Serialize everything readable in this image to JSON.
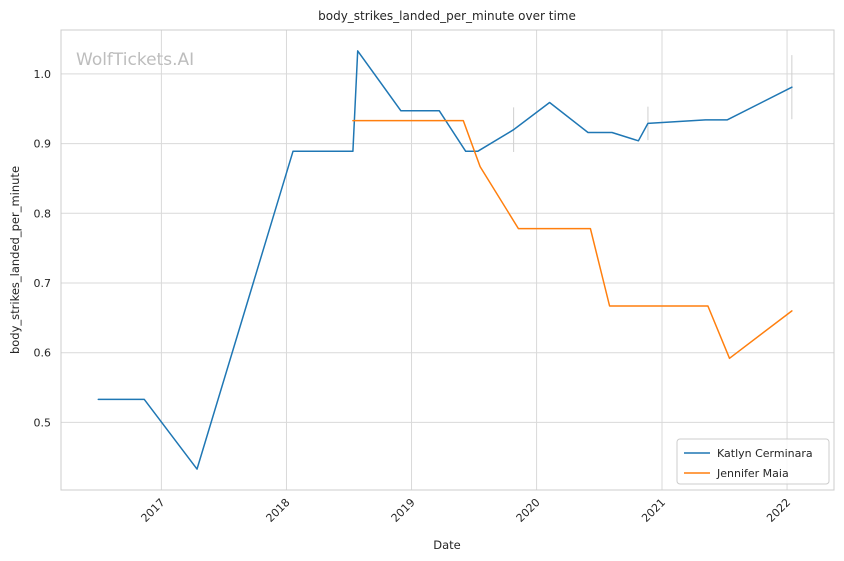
{
  "watermark": "WolfTickets.AI",
  "chart_data": {
    "type": "line",
    "title": "body_strikes_landed_per_minute over time",
    "xlabel": "Date",
    "ylabel": "body_strikes_landed_per_minute",
    "x_ticks": [
      "2017",
      "2018",
      "2019",
      "2020",
      "2021",
      "2022"
    ],
    "y_ticks": [
      "0.5",
      "0.6",
      "0.7",
      "0.8",
      "0.9",
      "1.0"
    ],
    "xlim": [
      "2016-03-14",
      "2022-05-18"
    ],
    "ylim": [
      0.403,
      1.063
    ],
    "grid": true,
    "legend_position": "bottom-right",
    "series": [
      {
        "name": "Katlyn Cerminara",
        "color": "#1f77b4",
        "points": [
          [
            "2016-07-01",
            0.533
          ],
          [
            "2016-11-12",
            0.533
          ],
          [
            "2017-04-15",
            0.433
          ],
          [
            "2018-01-20",
            0.889
          ],
          [
            "2018-07-14",
            0.889
          ],
          [
            "2018-07-28",
            1.033
          ],
          [
            "2018-12-01",
            0.947
          ],
          [
            "2019-03-23",
            0.947
          ],
          [
            "2019-06-08",
            0.889
          ],
          [
            "2019-07-13",
            0.889
          ],
          [
            "2019-10-26",
            0.92
          ],
          [
            "2020-02-08",
            0.959
          ],
          [
            "2020-05-30",
            0.916
          ],
          [
            "2020-08-08",
            0.916
          ],
          [
            "2020-10-24",
            0.904
          ],
          [
            "2020-11-21",
            0.929
          ],
          [
            "2021-05-08",
            0.934
          ],
          [
            "2021-07-10",
            0.934
          ],
          [
            "2022-01-15",
            0.981
          ]
        ]
      },
      {
        "name": "Jennifer Maia",
        "color": "#ff7f0e",
        "points": [
          [
            "2018-07-14",
            0.933
          ],
          [
            "2019-06-01",
            0.933
          ],
          [
            "2019-07-20",
            0.867
          ],
          [
            "2019-11-09",
            0.778
          ],
          [
            "2020-06-06",
            0.778
          ],
          [
            "2020-08-01",
            0.667
          ],
          [
            "2021-05-15",
            0.667
          ],
          [
            "2021-07-17",
            0.592
          ],
          [
            "2022-01-15",
            0.66
          ]
        ]
      }
    ],
    "error_bars": [
      {
        "x": "2019-10-26",
        "y_low": 0.888,
        "y_high": 0.952
      },
      {
        "x": "2020-11-21",
        "y_low": 0.905,
        "y_high": 0.953
      },
      {
        "x": "2022-01-15",
        "y_low": 0.935,
        "y_high": 1.027
      }
    ]
  }
}
